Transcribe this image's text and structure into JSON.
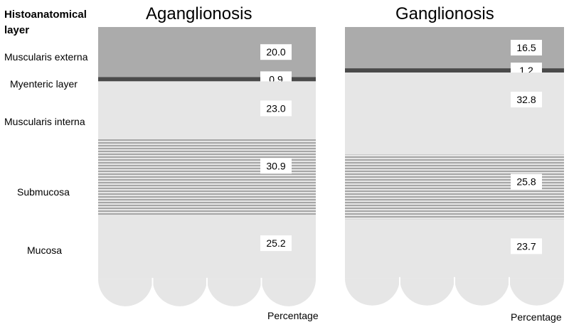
{
  "legend": {
    "title_line1": "Histoanatomical",
    "title_line2": "layer"
  },
  "colors": {
    "muscularis_externa": "#ababab",
    "myenteric_layer": "#4a4a4a",
    "muscularis_interna": "#e6e6e6",
    "submucosa_base": "#e6e6e6",
    "submucosa_lines": "#a6a6a6",
    "mucosa": "#e6e6e6"
  },
  "chart_data": [
    {
      "type": "stacked-bar",
      "title": "Aganglionosis",
      "xlabel": "Percentage",
      "ylim": [
        0,
        100
      ],
      "categories": [
        "Muscularis externa",
        "Myenteric layer",
        "Muscularis interna",
        "Submucosa",
        "Mucosa"
      ],
      "values": [
        20.0,
        0.9,
        23.0,
        30.9,
        25.2
      ],
      "value_labels": [
        "20.0",
        "0.9",
        "23.0",
        "30.9",
        "25.2"
      ]
    },
    {
      "type": "stacked-bar",
      "title": "Ganglionosis",
      "xlabel": "Percentage",
      "ylim": [
        0,
        100
      ],
      "categories": [
        "Muscularis externa",
        "Myenteric layer",
        "Muscularis interna",
        "Submucosa",
        "Mucosa"
      ],
      "values": [
        16.5,
        1.2,
        32.8,
        25.8,
        23.7
      ],
      "value_labels": [
        "16.5",
        "1.2",
        "32.8",
        "25.8",
        "23.7"
      ]
    }
  ]
}
